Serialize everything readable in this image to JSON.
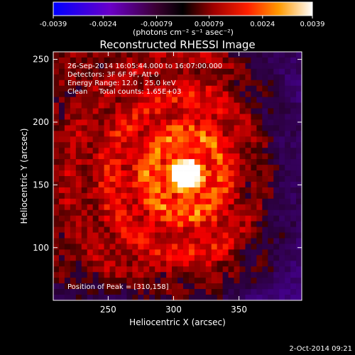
{
  "chart_data": {
    "type": "heatmap",
    "title": "Reconstructed RHESSI Image",
    "xlabel": "Heliocentric X (arcsec)",
    "ylabel": "Heliocentric Y (arcsec)",
    "xlim": [
      208,
      398
    ],
    "ylim": [
      58,
      256
    ],
    "x_ticks": [
      250,
      300,
      350
    ],
    "y_ticks": [
      100,
      150,
      200,
      250
    ],
    "colorbar": {
      "range": [
        -0.0039,
        0.0039
      ],
      "tick_values": [
        -0.0039,
        -0.0024,
        -0.00079,
        0.00079,
        0.0024,
        0.0039
      ],
      "tick_labels": [
        "-0.0039",
        "-0.0024",
        "-0.00079",
        "0.00079",
        "0.0024",
        "0.0039"
      ],
      "units": "(photons cm⁻² s⁻¹ asec⁻²)"
    },
    "peak": {
      "x": 310,
      "y": 158
    },
    "annotations": [
      "26-Sep-2014 16:05:44.000 to 16:07:00.000",
      "Detectors: 3F 6F 9F, Att 0",
      "Energy Range: 12.0 - 25.0 keV",
      "Clean     Total counts: 1.65E+03"
    ],
    "peak_label": "Position of Peak = [310,158]",
    "grid": false
  },
  "footer": {
    "timestamp": "2-Oct-2014 09:21"
  }
}
